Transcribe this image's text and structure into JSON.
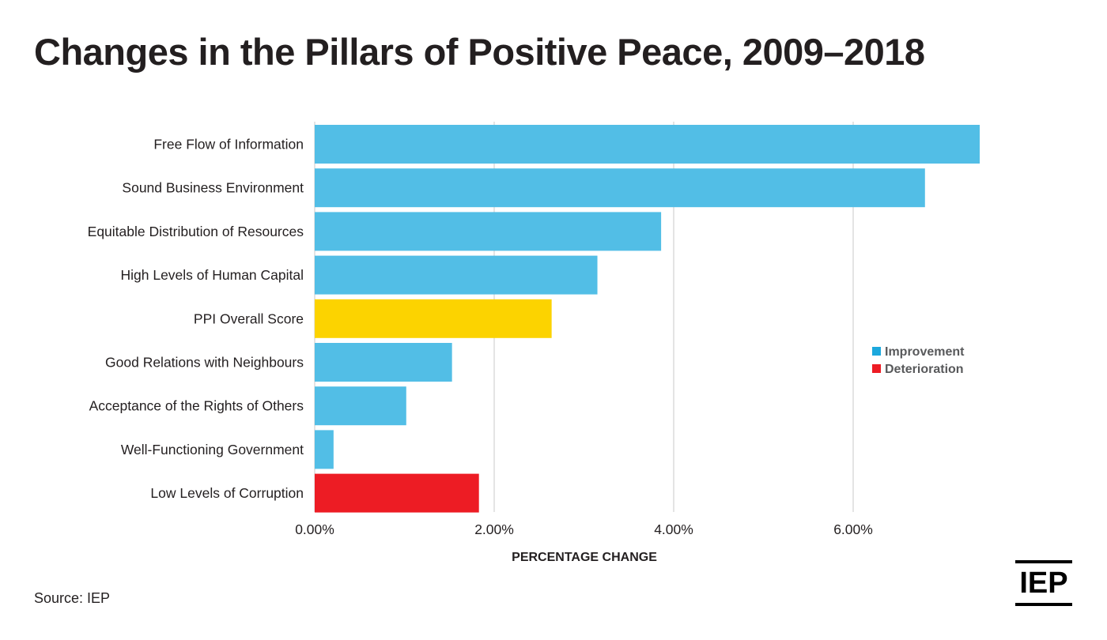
{
  "title": "Changes in the Pillars of Positive Peace, 2009–2018",
  "source": "Source: IEP",
  "logo_text": "IEP",
  "chart_data": {
    "type": "bar",
    "orientation": "horizontal",
    "title": "Changes in the Pillars of Positive Peace, 2009–2018",
    "xlabel": "PERCENTAGE CHANGE",
    "ylabel": "",
    "xlim": [
      0,
      7.5
    ],
    "xticks": [
      0,
      2,
      4,
      6
    ],
    "xtick_labels": [
      "0.00%",
      "2.00%",
      "4.00%",
      "6.00%"
    ],
    "grid": true,
    "categories": [
      "Free Flow of Information",
      "Sound Business Environment",
      "Equitable Distribution of Resources",
      "High Levels of Human Capital",
      "PPI Overall Score",
      "Good Relations with Neighbours",
      "Acceptance of the Rights of Others",
      "Well-Functioning Government",
      "Low Levels of Corruption"
    ],
    "values": [
      7.41,
      6.8,
      3.86,
      3.15,
      2.64,
      1.53,
      1.02,
      0.21,
      1.83
    ],
    "bar_types": [
      "improvement",
      "improvement",
      "improvement",
      "improvement",
      "overall",
      "improvement",
      "improvement",
      "improvement",
      "deterioration"
    ],
    "colors": {
      "improvement": "#52bee6",
      "deterioration": "#ed1c24",
      "overall": "#fcd300",
      "gridline": "#c8c8c8"
    },
    "legend": {
      "position": "right",
      "entries": [
        {
          "label": "Improvement",
          "color": "#1ca8dd"
        },
        {
          "label": "Deterioration",
          "color": "#ed1c24"
        }
      ]
    }
  }
}
